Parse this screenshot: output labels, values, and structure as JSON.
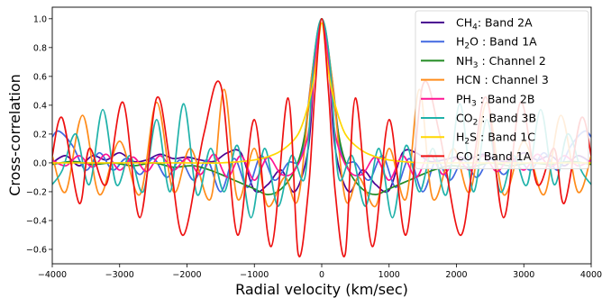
{
  "chart_data": {
    "type": "line",
    "xlabel": "Radial velocity (km/sec)",
    "ylabel": "Cross-correlation",
    "xlim": [
      -4000,
      4000
    ],
    "ylim": [
      -0.7,
      1.08
    ],
    "x_ticks": [
      -4000,
      -3000,
      -2000,
      -1000,
      0,
      1000,
      2000,
      3000,
      4000
    ],
    "y_ticks": [
      -0.6,
      -0.4,
      -0.2,
      0.0,
      0.2,
      0.4,
      0.6,
      0.8,
      1.0
    ],
    "x_tick_labels": [
      "−4000",
      "−3000",
      "−2000",
      "−1000",
      "0",
      "1000",
      "2000",
      "3000",
      "4000"
    ],
    "y_tick_labels": [
      "−0.6",
      "−0.4",
      "−0.2",
      "0.0",
      "0.2",
      "0.4",
      "0.6",
      "0.8",
      "1.0"
    ],
    "grid": false,
    "legend_position": "top-right",
    "series": [
      {
        "mol": "CH",
        "sub": "4",
        "label_rest": ": Band 2A",
        "color": "#4b0092",
        "x": [
          -4000,
          -3800,
          -3600,
          -3400,
          -3200,
          -3000,
          -2800,
          -2600,
          -2400,
          -2200,
          -2000,
          -1800,
          -1600,
          -1400,
          -1200,
          -1000,
          -800,
          -600,
          -400,
          -200,
          -100,
          0,
          100,
          200,
          400,
          600,
          800,
          1000,
          1200,
          1400,
          1600,
          1800,
          2000,
          2200,
          2400,
          2600,
          2800,
          3000,
          3200,
          3400,
          3600,
          3800,
          4000
        ],
        "y": [
          0.0,
          0.05,
          -0.02,
          0.05,
          0.02,
          0.07,
          0.01,
          0.02,
          0.06,
          0.03,
          0.04,
          0.02,
          0.01,
          0.07,
          0.07,
          -0.19,
          -0.15,
          -0.05,
          -0.2,
          0.1,
          0.7,
          1.0,
          0.7,
          0.1,
          -0.2,
          -0.05,
          -0.15,
          -0.19,
          0.07,
          0.07,
          0.01,
          0.02,
          0.04,
          0.03,
          0.06,
          0.02,
          0.01,
          0.07,
          0.02,
          0.05,
          -0.02,
          0.05,
          0.0
        ]
      },
      {
        "mol": "H",
        "sub": "2",
        "label_rest": "O : Band 1A",
        "color": "#4169e1",
        "x": [
          -4000,
          -3900,
          -3700,
          -3500,
          -3300,
          -3100,
          -2900,
          -2700,
          -2500,
          -2300,
          -2100,
          -1900,
          -1700,
          -1500,
          -1300,
          -1100,
          -900,
          -700,
          -500,
          -300,
          -150,
          0,
          150,
          300,
          500,
          700,
          900,
          1100,
          1300,
          1500,
          1700,
          1900,
          2100,
          2300,
          2500,
          2700,
          2900,
          3100,
          3300,
          3500,
          3700,
          3900,
          4000
        ],
        "y": [
          0.18,
          0.22,
          0.12,
          -0.05,
          0.07,
          -0.05,
          0.03,
          -0.08,
          0.03,
          -0.1,
          0.02,
          -0.12,
          0.02,
          -0.2,
          0.03,
          -0.17,
          0.05,
          -0.12,
          0.0,
          0.05,
          0.6,
          1.0,
          0.6,
          0.05,
          0.0,
          -0.12,
          0.05,
          -0.17,
          0.03,
          -0.2,
          0.02,
          -0.12,
          0.02,
          -0.1,
          0.03,
          -0.08,
          0.03,
          -0.05,
          0.07,
          -0.05,
          0.12,
          0.22,
          0.18
        ]
      },
      {
        "mol": "NH",
        "sub": "3",
        "label_rest": " : Channel 2",
        "color": "#228b22",
        "x": [
          -4000,
          -3700,
          -3400,
          -3100,
          -2800,
          -2500,
          -2200,
          -1900,
          -1600,
          -1300,
          -1000,
          -800,
          -600,
          -400,
          -250,
          -100,
          0,
          100,
          250,
          400,
          600,
          800,
          1000,
          1300,
          1600,
          1900,
          2200,
          2500,
          2800,
          3100,
          3400,
          3700,
          4000
        ],
        "y": [
          -0.01,
          0.01,
          -0.01,
          0.0,
          -0.02,
          0.0,
          -0.03,
          -0.02,
          -0.06,
          -0.12,
          -0.18,
          -0.22,
          -0.18,
          -0.05,
          0.2,
          0.75,
          1.0,
          0.75,
          0.2,
          -0.05,
          -0.18,
          -0.22,
          -0.18,
          -0.12,
          -0.06,
          -0.02,
          -0.03,
          0.0,
          -0.02,
          0.0,
          -0.01,
          0.01,
          -0.01
        ]
      },
      {
        "mol": "HCN",
        "sub": "",
        "label_rest": " : Channel 3",
        "color": "#ff8c1a",
        "x": [
          -4000,
          -3800,
          -3550,
          -3300,
          -3000,
          -2700,
          -2450,
          -2200,
          -1950,
          -1650,
          -1450,
          -1250,
          -1000,
          -800,
          -550,
          -350,
          -150,
          0,
          150,
          350,
          550,
          800,
          1000,
          1250,
          1450,
          1650,
          1950,
          2200,
          2450,
          2700,
          3000,
          3300,
          3550,
          3800,
          4000
        ],
        "y": [
          0.05,
          -0.2,
          0.33,
          -0.22,
          0.15,
          -0.22,
          0.42,
          -0.2,
          0.1,
          -0.25,
          0.51,
          -0.25,
          0.1,
          -0.3,
          -0.1,
          -0.25,
          0.6,
          1.0,
          0.6,
          -0.25,
          -0.1,
          -0.3,
          0.1,
          -0.25,
          0.51,
          -0.25,
          0.1,
          -0.2,
          0.42,
          -0.22,
          0.15,
          -0.22,
          0.33,
          -0.2,
          0.05
        ]
      },
      {
        "mol": "PH",
        "sub": "3",
        "label_rest": " : Band 2B",
        "color": "#ff1493",
        "x": [
          -4000,
          -3800,
          -3600,
          -3400,
          -3200,
          -3000,
          -2800,
          -2600,
          -2400,
          -2200,
          -2000,
          -1800,
          -1600,
          -1400,
          -1200,
          -1000,
          -800,
          -600,
          -400,
          -200,
          -100,
          0,
          100,
          200,
          400,
          600,
          800,
          1000,
          1200,
          1400,
          1600,
          1800,
          2000,
          2200,
          2400,
          2600,
          2800,
          3000,
          3200,
          3400,
          3600,
          3800,
          4000
        ],
        "y": [
          0.02,
          -0.02,
          0.05,
          -0.03,
          0.06,
          -0.05,
          0.04,
          -0.06,
          0.05,
          -0.05,
          0.03,
          -0.08,
          0.06,
          -0.1,
          0.05,
          -0.12,
          0.04,
          -0.08,
          -0.05,
          0.2,
          0.7,
          1.0,
          0.7,
          0.2,
          -0.05,
          -0.08,
          0.04,
          -0.12,
          0.05,
          -0.1,
          0.06,
          -0.08,
          0.03,
          -0.05,
          0.05,
          -0.06,
          0.04,
          -0.05,
          0.06,
          -0.03,
          0.05,
          -0.02,
          0.02
        ]
      },
      {
        "mol": "CO",
        "sub": "2",
        "label_rest": " : Band 3B",
        "color": "#20b2aa",
        "x": [
          -4000,
          -3850,
          -3650,
          -3450,
          -3250,
          -3050,
          -2850,
          -2650,
          -2450,
          -2250,
          -2050,
          -1850,
          -1650,
          -1450,
          -1250,
          -1050,
          -850,
          -650,
          -450,
          -250,
          -120,
          0,
          120,
          250,
          450,
          650,
          850,
          1050,
          1250,
          1450,
          1650,
          1850,
          2050,
          2250,
          2450,
          2650,
          2850,
          3050,
          3250,
          3450,
          3650,
          3850,
          4000
        ],
        "y": [
          -0.15,
          -0.05,
          0.2,
          -0.15,
          0.37,
          -0.15,
          0.05,
          -0.2,
          0.3,
          -0.2,
          0.41,
          -0.22,
          0.1,
          -0.2,
          0.12,
          -0.38,
          0.1,
          -0.3,
          0.05,
          -0.1,
          0.7,
          1.0,
          0.7,
          -0.1,
          0.05,
          -0.3,
          0.1,
          -0.38,
          0.12,
          -0.2,
          0.1,
          -0.22,
          0.41,
          -0.2,
          0.3,
          -0.2,
          0.05,
          -0.15,
          0.37,
          -0.15,
          0.2,
          -0.05,
          -0.15
        ]
      },
      {
        "mol": "H",
        "sub": "2",
        "label_rest": "S : Band 1C",
        "color": "#ffd700",
        "x": [
          -4000,
          -3000,
          -2000,
          -1500,
          -1000,
          -700,
          -500,
          -350,
          -250,
          -150,
          -80,
          0,
          80,
          150,
          250,
          350,
          500,
          700,
          1000,
          1500,
          2000,
          3000,
          4000
        ],
        "y": [
          0.0,
          0.0,
          0.0,
          0.0,
          0.02,
          0.06,
          0.12,
          0.2,
          0.32,
          0.5,
          0.7,
          0.97,
          0.7,
          0.5,
          0.32,
          0.2,
          0.12,
          0.06,
          0.02,
          0.0,
          0.0,
          0.0,
          0.0
        ]
      },
      {
        "mol": "CO",
        "sub": "",
        "label_rest": " : Band 1A",
        "color": "#ee1111",
        "x": [
          -4000,
          -3850,
          -3600,
          -3450,
          -3200,
          -2950,
          -2700,
          -2450,
          -2250,
          -2050,
          -1750,
          -1500,
          -1250,
          -1000,
          -750,
          -500,
          -350,
          -200,
          -100,
          0,
          100,
          200,
          350,
          500,
          750,
          1000,
          1250,
          1500,
          1750,
          2050,
          2250,
          2450,
          2700,
          2950,
          3200,
          3450,
          3600,
          3850,
          4000
        ],
        "y": [
          0.05,
          0.31,
          -0.28,
          0.1,
          -0.15,
          0.42,
          -0.38,
          0.45,
          0.0,
          -0.5,
          0.2,
          0.54,
          -0.5,
          0.3,
          -0.58,
          0.45,
          -0.63,
          -0.2,
          0.5,
          1.0,
          0.5,
          -0.2,
          -0.63,
          0.45,
          -0.58,
          0.3,
          -0.5,
          0.54,
          0.2,
          -0.5,
          0.0,
          0.45,
          -0.38,
          0.42,
          -0.15,
          0.1,
          -0.28,
          0.31,
          0.05
        ]
      }
    ]
  }
}
